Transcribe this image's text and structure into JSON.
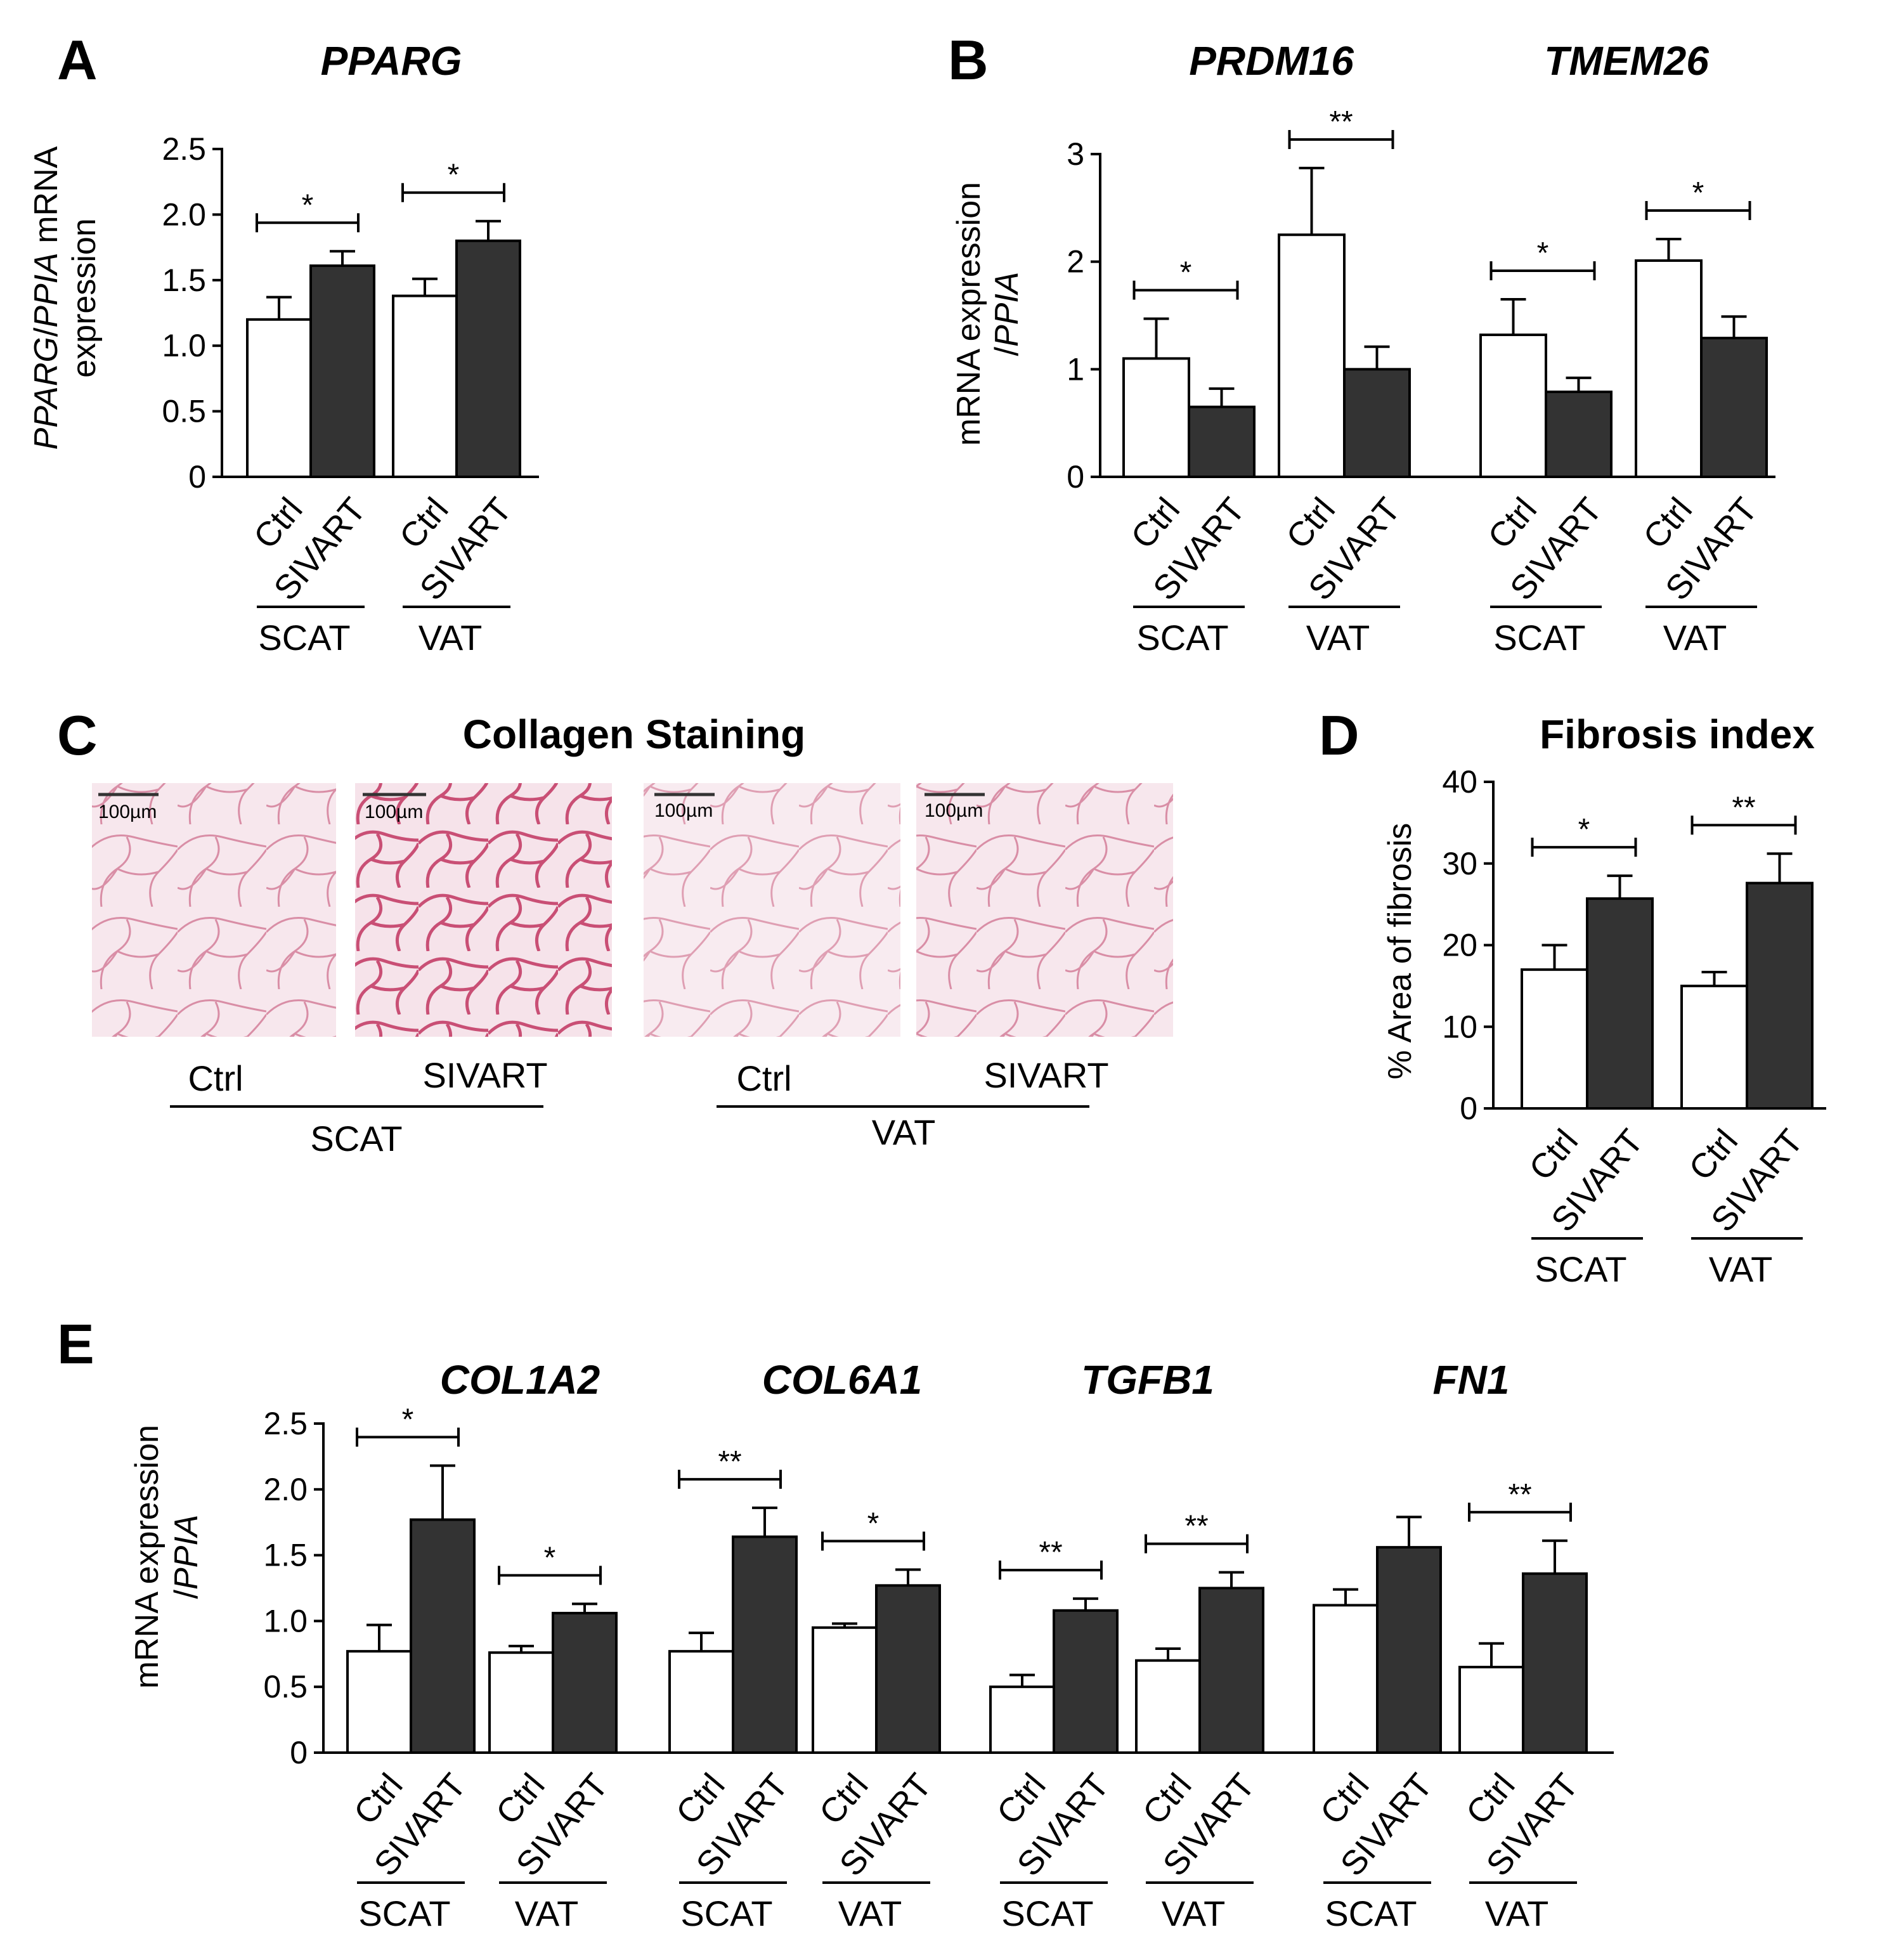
{
  "colors": {
    "ctrl": "#ffffff",
    "sivart": "#333333",
    "stroke": "#000000"
  },
  "panels": {
    "A": {
      "letter": "A",
      "titles": [
        "PPARG"
      ],
      "ylabel_lines": [
        [
          {
            "t": "PPARG",
            "i": true
          },
          {
            "t": "/",
            "i": false
          },
          {
            "t": "PPIA",
            "i": true
          },
          {
            "t": " mRNA",
            "i": false
          }
        ],
        [
          {
            "t": "expression",
            "i": false
          }
        ]
      ]
    },
    "B": {
      "letter": "B",
      "titles": [
        "PRDM16",
        "TMEM26"
      ],
      "ylabel_lines": [
        [
          {
            "t": "mRNA expression",
            "i": false
          }
        ],
        [
          {
            "t": "/",
            "i": false
          },
          {
            "t": "PPIA",
            "i": true
          }
        ]
      ]
    },
    "C": {
      "letter": "C",
      "title": "Collagen Staining",
      "scale_label": "100µm",
      "images": [
        {
          "label": "Ctrl",
          "group": "SCAT"
        },
        {
          "label": "SIVART",
          "group": "SCAT"
        },
        {
          "label": "Ctrl",
          "group": "VAT"
        },
        {
          "label": "SIVART",
          "group": "VAT"
        }
      ],
      "group_labels": [
        "SCAT",
        "VAT"
      ]
    },
    "D": {
      "letter": "D",
      "title": "Fibrosis index",
      "ylabel_lines": [
        [
          {
            "t": "% Area of fibrosis",
            "i": false
          }
        ]
      ]
    },
    "E": {
      "letter": "E",
      "titles": [
        "COL1A2",
        "COL6A1",
        "TGFB1",
        "FN1"
      ],
      "ylabel_lines": [
        [
          {
            "t": "mRNA expression",
            "i": false
          }
        ],
        [
          {
            "t": "/",
            "i": false
          },
          {
            "t": "PPIA",
            "i": true
          }
        ]
      ]
    }
  },
  "chart_data": [
    {
      "panel": "A",
      "type": "bar",
      "title": "PPARG",
      "ylim": [
        0,
        2.5
      ],
      "yticks": [
        "0",
        "0.5",
        "1.0",
        "1.5",
        "2.0",
        "2.5"
      ],
      "groups": [
        {
          "gene": "PPARG",
          "tissue": "SCAT",
          "ctrl": 1.2,
          "ctrl_err": 0.17,
          "sivart": 1.61,
          "sivart_err": 0.11,
          "sig": "*"
        },
        {
          "gene": "PPARG",
          "tissue": "VAT",
          "ctrl": 1.38,
          "ctrl_err": 0.13,
          "sivart": 1.8,
          "sivart_err": 0.15,
          "sig": "*"
        }
      ],
      "category_labels": [
        "Ctrl",
        "SIVART"
      ]
    },
    {
      "panel": "B",
      "type": "bar",
      "titles": [
        "PRDM16",
        "TMEM26"
      ],
      "ylim": [
        0,
        3
      ],
      "yticks": [
        "0",
        "1",
        "2",
        "3"
      ],
      "groups": [
        {
          "gene": "PRDM16",
          "tissue": "SCAT",
          "ctrl": 1.1,
          "ctrl_err": 0.37,
          "sivart": 0.65,
          "sivart_err": 0.17,
          "sig": "*"
        },
        {
          "gene": "PRDM16",
          "tissue": "VAT",
          "ctrl": 2.25,
          "ctrl_err": 0.62,
          "sivart": 1.0,
          "sivart_err": 0.21,
          "sig": "**"
        },
        {
          "gene": "TMEM26",
          "tissue": "SCAT",
          "ctrl": 1.32,
          "ctrl_err": 0.33,
          "sivart": 0.79,
          "sivart_err": 0.13,
          "sig": "*"
        },
        {
          "gene": "TMEM26",
          "tissue": "VAT",
          "ctrl": 2.01,
          "ctrl_err": 0.2,
          "sivart": 1.29,
          "sivart_err": 0.2,
          "sig": "*"
        }
      ],
      "category_labels": [
        "Ctrl",
        "SIVART"
      ]
    },
    {
      "panel": "D",
      "type": "bar",
      "title": "Fibrosis index",
      "ylabel": "% Area of fibrosis",
      "ylim": [
        0,
        40
      ],
      "yticks": [
        "0",
        "10",
        "20",
        "30",
        "40"
      ],
      "groups": [
        {
          "tissue": "SCAT",
          "ctrl": 17,
          "ctrl_err": 3,
          "sivart": 25.7,
          "sivart_err": 2.8,
          "sig": "*"
        },
        {
          "tissue": "VAT",
          "ctrl": 15,
          "ctrl_err": 1.7,
          "sivart": 27.6,
          "sivart_err": 3.6,
          "sig": "**"
        }
      ],
      "category_labels": [
        "Ctrl",
        "SIVART"
      ]
    },
    {
      "panel": "E",
      "type": "bar",
      "titles": [
        "COL1A2",
        "COL6A1",
        "TGFB1",
        "FN1"
      ],
      "ylim": [
        0,
        2.5
      ],
      "yticks": [
        "0",
        "0.5",
        "1.0",
        "1.5",
        "2.0",
        "2.5"
      ],
      "groups": [
        {
          "gene": "COL1A2",
          "tissue": "SCAT",
          "ctrl": 0.77,
          "ctrl_err": 0.2,
          "sivart": 1.77,
          "sivart_err": 0.41,
          "sig": "*"
        },
        {
          "gene": "COL1A2",
          "tissue": "VAT",
          "ctrl": 0.76,
          "ctrl_err": 0.05,
          "sivart": 1.06,
          "sivart_err": 0.07,
          "sig": "*"
        },
        {
          "gene": "COL6A1",
          "tissue": "SCAT",
          "ctrl": 0.77,
          "ctrl_err": 0.14,
          "sivart": 1.64,
          "sivart_err": 0.22,
          "sig": "**"
        },
        {
          "gene": "COL6A1",
          "tissue": "VAT",
          "ctrl": 0.95,
          "ctrl_err": 0.03,
          "sivart": 1.27,
          "sivart_err": 0.12,
          "sig": "*"
        },
        {
          "gene": "TGFB1",
          "tissue": "SCAT",
          "ctrl": 0.5,
          "ctrl_err": 0.09,
          "sivart": 1.08,
          "sivart_err": 0.09,
          "sig": "**"
        },
        {
          "gene": "TGFB1",
          "tissue": "VAT",
          "ctrl": 0.7,
          "ctrl_err": 0.09,
          "sivart": 1.25,
          "sivart_err": 0.12,
          "sig": "**"
        },
        {
          "gene": "FN1",
          "tissue": "SCAT",
          "ctrl": 1.12,
          "ctrl_err": 0.12,
          "sivart": 1.56,
          "sivart_err": 0.23,
          "sig": ""
        },
        {
          "gene": "FN1",
          "tissue": "VAT",
          "ctrl": 0.65,
          "ctrl_err": 0.18,
          "sivart": 1.36,
          "sivart_err": 0.25,
          "sig": "**"
        }
      ],
      "category_labels": [
        "Ctrl",
        "SIVART"
      ]
    }
  ]
}
